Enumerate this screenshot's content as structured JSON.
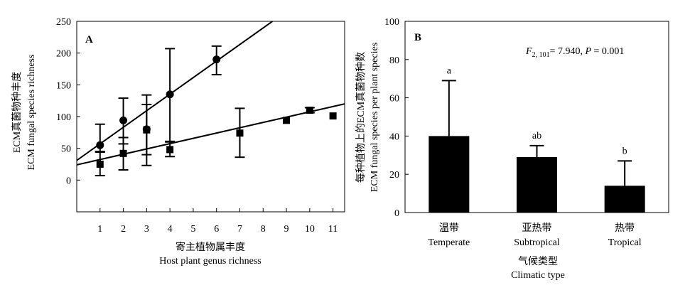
{
  "chart_data": [
    {
      "panel": "A",
      "type": "scatter",
      "title": "",
      "ylabel_zh": "ECM真菌物种丰度",
      "ylabel_en": "ECM fungal species richness",
      "xlabel_zh": "寄主植物属丰度",
      "xlabel_en": "Host plant genus richness",
      "xlim": [
        0,
        11.5
      ],
      "ylim": [
        -50,
        250
      ],
      "xticks": [
        1,
        2,
        3,
        4,
        5,
        6,
        7,
        8,
        9,
        10,
        11
      ],
      "yticks": [
        0,
        50,
        100,
        150,
        200,
        250
      ],
      "series": [
        {
          "marker": "circle",
          "points": [
            {
              "x": 1,
              "y": 55,
              "err_low": 45,
              "err_high": 88
            },
            {
              "x": 2,
              "y": 94,
              "err_low": 57,
              "err_high": 129
            },
            {
              "x": 3,
              "y": 80,
              "err_low": 40,
              "err_high": 119
            },
            {
              "x": 4,
              "y": 135,
              "err_low": 60,
              "err_high": 207
            },
            {
              "x": 6,
              "y": 190,
              "err_low": 166,
              "err_high": 211
            }
          ],
          "trendline": {
            "x0": 0,
            "y0": 31,
            "x1": 8.4,
            "y1": 250
          }
        },
        {
          "marker": "square",
          "points": [
            {
              "x": 1,
              "y": 25,
              "err_low": 7,
              "err_high": 44
            },
            {
              "x": 2,
              "y": 42,
              "err_low": 16,
              "err_high": 67
            },
            {
              "x": 3,
              "y": 79,
              "err_low": 23,
              "err_high": 134
            },
            {
              "x": 4,
              "y": 48,
              "err_low": 37,
              "err_high": 61
            },
            {
              "x": 7,
              "y": 74,
              "err_low": 36,
              "err_high": 113
            },
            {
              "x": 9,
              "y": 94,
              "err_low": 94,
              "err_high": 94
            },
            {
              "x": 10,
              "y": 110,
              "err_low": 106,
              "err_high": 114
            },
            {
              "x": 11,
              "y": 101,
              "err_low": 101,
              "err_high": 101
            }
          ],
          "trendline": {
            "x0": 0,
            "y0": 24,
            "x1": 11.5,
            "y1": 120
          }
        }
      ]
    },
    {
      "panel": "B",
      "type": "bar",
      "title": "",
      "annotation_F": "F",
      "annotation_sub": "2, 101",
      "annotation_rest": "= 7.940, ",
      "annotation_P": "P",
      "annotation_pval": " = 0.001",
      "ylabel_zh": "每种植物上的ECM真菌物种数",
      "ylabel_en": "ECM fungal species per plant species",
      "xlabel_zh": "气候类型",
      "xlabel_en": "Climatic type",
      "ylim": [
        0,
        100
      ],
      "yticks": [
        0,
        20,
        40,
        60,
        80,
        100
      ],
      "categories_zh": [
        "温带",
        "亚热带",
        "热带"
      ],
      "categories": [
        "Temperate",
        "Subtropical",
        "Tropical"
      ],
      "values": [
        40,
        29,
        14
      ],
      "errors": [
        29,
        6,
        13
      ],
      "sig_letters": [
        "a",
        "ab",
        "b"
      ]
    }
  ]
}
